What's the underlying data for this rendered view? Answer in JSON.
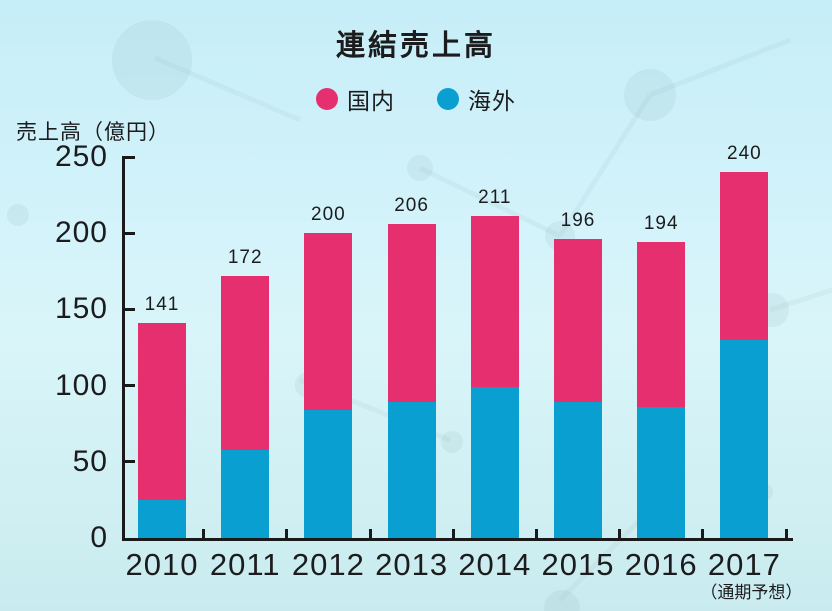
{
  "chart_data": {
    "type": "bar",
    "stacked": true,
    "title": "連結売上高",
    "ylabel": "売上高（億円）",
    "categories": [
      "2010",
      "2011",
      "2012",
      "2013",
      "2014",
      "2015",
      "2016",
      "2017"
    ],
    "last_category_note": "（通期予想）",
    "series": [
      {
        "name": "海外",
        "color": "#0a9fd1",
        "values": [
          25,
          58,
          84,
          89,
          99,
          89,
          86,
          130
        ]
      },
      {
        "name": "国内",
        "color": "#e62f6f",
        "values": [
          116,
          114,
          116,
          117,
          112,
          107,
          108,
          110
        ]
      }
    ],
    "totals": [
      141,
      172,
      200,
      206,
      211,
      196,
      194,
      240
    ],
    "ylim": [
      0,
      250
    ],
    "yticks": [
      0,
      50,
      100,
      150,
      200,
      250
    ],
    "legend": [
      {
        "label": "国内",
        "color": "#e62f6f"
      },
      {
        "label": "海外",
        "color": "#0a9fd1"
      }
    ],
    "legend_position": "top",
    "grid": false,
    "axis_color": "#1a1a1a",
    "background_color": "#d4f3fa"
  }
}
